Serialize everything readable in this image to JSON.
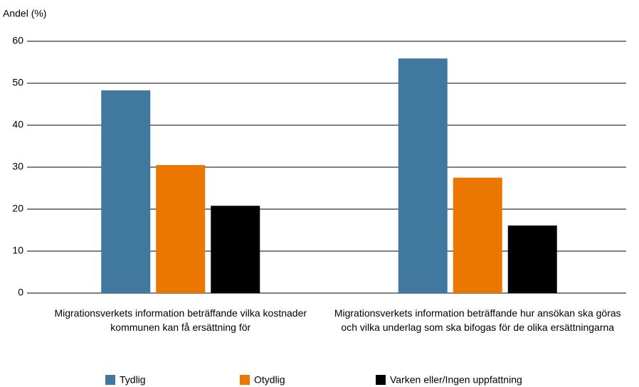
{
  "chart_data": {
    "type": "bar",
    "y_label": "Andel (%)",
    "categories": [
      "Migrationsverkets information beträffande vilka kostnader kommunen kan få ersättning för",
      "Migrationsverkets information beträffande hur ansökan ska göras och vilka underlag som ska bifogas för de olika ersättningarna"
    ],
    "series": [
      {
        "name": "Tydlig",
        "color": "#41789f",
        "values": [
          48.3,
          55.9
        ]
      },
      {
        "name": "Otydlig",
        "color": "#ec7700",
        "values": [
          30.5,
          27.5
        ]
      },
      {
        "name": "Varken eller/Ingen uppfattning",
        "color": "#000000",
        "values": [
          20.8,
          16.1
        ]
      }
    ],
    "ylim": [
      0,
      60
    ],
    "yticks": [
      0,
      10,
      20,
      30,
      40,
      50,
      60
    ],
    "grid": true
  }
}
